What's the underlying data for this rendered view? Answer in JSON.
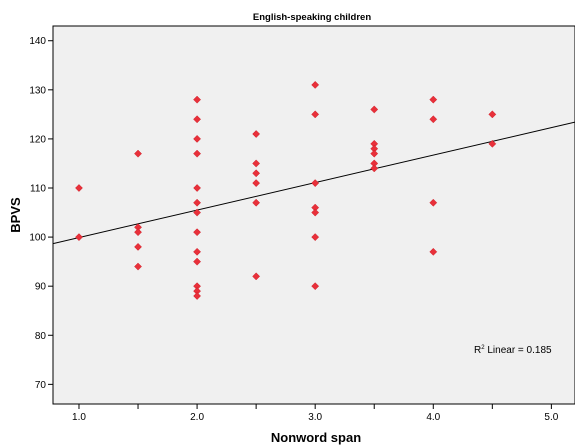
{
  "chart_data": {
    "type": "scatter",
    "title": "English-speaking children",
    "xlabel": "Nonword span",
    "ylabel": "BPVS",
    "xlim": [
      0.78,
      5.2
    ],
    "ylim": [
      66,
      143
    ],
    "x_ticks": [
      1.0,
      1.5,
      2.0,
      2.5,
      3.0,
      3.5,
      4.0,
      4.5,
      5.0
    ],
    "x_tick_labels": [
      "1.0",
      "",
      "2.0",
      "",
      "3.0",
      "",
      "4.0",
      "",
      "5.0"
    ],
    "y_ticks": [
      70,
      80,
      90,
      100,
      110,
      120,
      130,
      140
    ],
    "y_tick_labels": [
      "70",
      "80",
      "90",
      "100",
      "110",
      "120",
      "130",
      "140"
    ],
    "grid": false,
    "background": "#f0f0f0",
    "marker_color": "#e8303a",
    "series": [
      {
        "points": [
          [
            1.0,
            110
          ],
          [
            1.0,
            100
          ],
          [
            1.5,
            117
          ],
          [
            1.5,
            102
          ],
          [
            1.5,
            101
          ],
          [
            1.5,
            98
          ],
          [
            1.5,
            94
          ],
          [
            2.0,
            128
          ],
          [
            2.0,
            124
          ],
          [
            2.0,
            120
          ],
          [
            2.0,
            117
          ],
          [
            2.0,
            110
          ],
          [
            2.0,
            107
          ],
          [
            2.0,
            105
          ],
          [
            2.0,
            101
          ],
          [
            2.0,
            97
          ],
          [
            2.0,
            95
          ],
          [
            2.0,
            90
          ],
          [
            2.0,
            89
          ],
          [
            2.0,
            88
          ],
          [
            2.5,
            121
          ],
          [
            2.5,
            115
          ],
          [
            2.5,
            113
          ],
          [
            2.5,
            111
          ],
          [
            2.5,
            107
          ],
          [
            2.5,
            92
          ],
          [
            3.0,
            131
          ],
          [
            3.0,
            125
          ],
          [
            3.0,
            111
          ],
          [
            3.0,
            106
          ],
          [
            3.0,
            105
          ],
          [
            3.0,
            100
          ],
          [
            3.0,
            90
          ],
          [
            3.5,
            126
          ],
          [
            3.5,
            119
          ],
          [
            3.5,
            118
          ],
          [
            3.5,
            117
          ],
          [
            3.5,
            115
          ],
          [
            3.5,
            114
          ],
          [
            4.0,
            128
          ],
          [
            4.0,
            124
          ],
          [
            4.0,
            107
          ],
          [
            4.0,
            97
          ],
          [
            4.5,
            125
          ],
          [
            4.5,
            119
          ]
        ]
      }
    ],
    "fit_line": {
      "type": "linear",
      "intercept": 94.3,
      "slope": 5.6
    },
    "annotation": {
      "r2_label": "R",
      "r2_sup": "2",
      "r2_text": " Linear = 0.185"
    }
  }
}
